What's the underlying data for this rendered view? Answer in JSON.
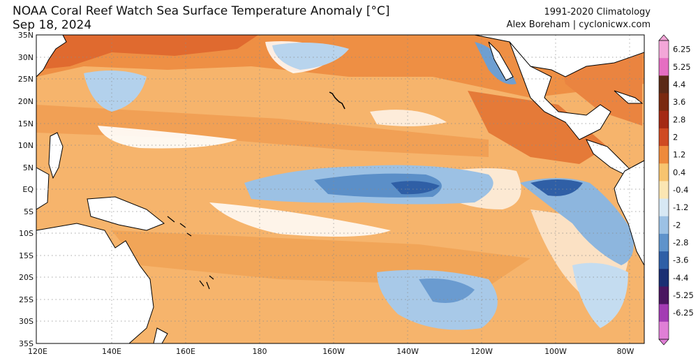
{
  "header": {
    "title": "NOAA Coral Reef Watch Sea Surface Temperature Anomaly [°C]",
    "date": "Sep 18, 2024",
    "climatology": "1991-2020 Climatology",
    "credit": "Alex Boreham | cyclonicwx.com"
  },
  "map": {
    "lat_labels": [
      "35N",
      "30N",
      "25N",
      "20N",
      "15N",
      "10N",
      "5N",
      "EQ",
      "5S",
      "10S",
      "15S",
      "20S",
      "25S",
      "30S",
      "35S"
    ],
    "lon_labels": [
      "120E",
      "140E",
      "160E",
      "180",
      "160W",
      "140W",
      "120W",
      "100W",
      "80W"
    ],
    "colors": {
      "ocean_warm": "#f6b36a",
      "ocean_hot": "#ee8a3c",
      "ocean_very_hot": "#d9562a",
      "ocean_neutral": "#ffffff",
      "ocean_cool": "#a7c8e6",
      "ocean_cold": "#4f86c2",
      "land": "#ffffff",
      "coast": "#000000"
    }
  },
  "colorbar": {
    "labels": [
      "6.25",
      "5.25",
      "4.4",
      "3.6",
      "2.8",
      "2",
      "1.2",
      "0.4",
      "-0.4",
      "-1.2",
      "-2",
      "-2.8",
      "-3.6",
      "-4.4",
      "-5.25",
      "-6.25"
    ],
    "colors": [
      "#f3a6d8",
      "#e56ec2",
      "#5b2a17",
      "#7a2a10",
      "#a42a14",
      "#cf4a22",
      "#ee8a3c",
      "#f7c46f",
      "#fbe6b3",
      "#d7e8f4",
      "#9cc1e4",
      "#5f93cb",
      "#2f5fa6",
      "#1b2f73",
      "#4a1660",
      "#a33cb3",
      "#e07fd6"
    ]
  }
}
